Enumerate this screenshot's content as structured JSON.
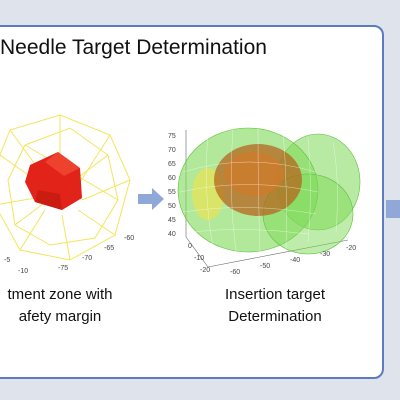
{
  "title": "Needle Target Determination",
  "left_figure": {
    "caption_line1": "tment zone with",
    "caption_line2": "afety margin",
    "ticks": {
      "a": "-5",
      "b": "-10",
      "c": "-75",
      "d": "-70",
      "e": "-65",
      "f": "-60"
    }
  },
  "right_figure": {
    "caption_line1": "Insertion target",
    "caption_line2": "Determination",
    "z_ticks": [
      "75",
      "70",
      "65",
      "60",
      "55",
      "50",
      "45",
      "40"
    ],
    "x_ticks": [
      "0",
      "-10",
      "-20"
    ],
    "y_ticks": [
      "-60",
      "-50",
      "-40",
      "-30",
      "-20"
    ]
  },
  "colors": {
    "accent_border": "#5c7bc4",
    "arrow": "#8fa8d8",
    "tumor": "#e2231a",
    "margin_wire": "#f2e24a",
    "insertion_zone": "#7ed957"
  },
  "icons": [
    "right-arrow-icon"
  ]
}
